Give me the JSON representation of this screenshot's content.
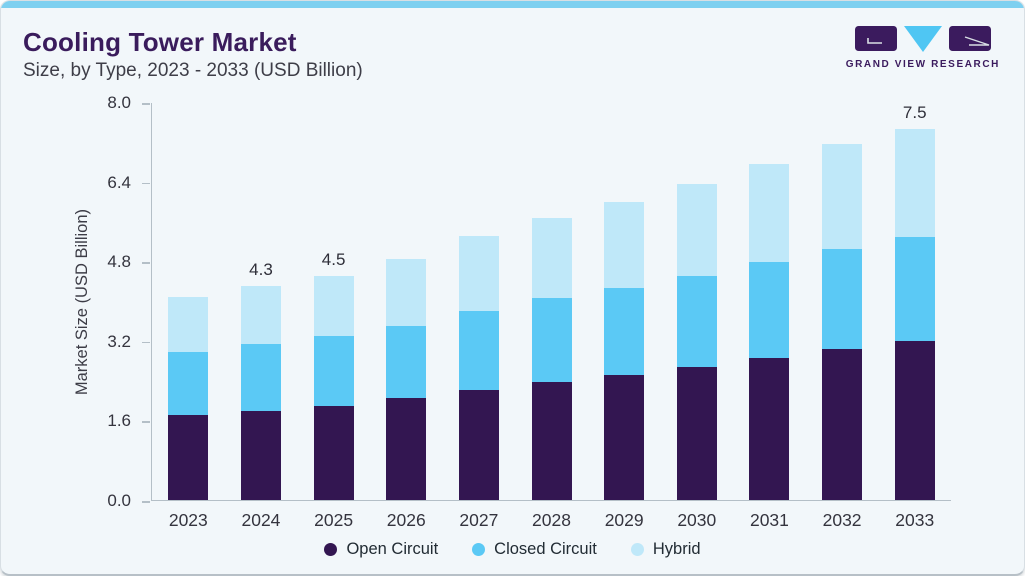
{
  "header": {
    "title": "Cooling Tower Market",
    "subtitle": "Size, by Type, 2023 - 2033 (USD Billion)"
  },
  "brand": {
    "name": "GRAND VIEW RESEARCH",
    "icon": "gvr-logo-icon",
    "purple": "#3b1b5e",
    "blue": "#4fc6f3"
  },
  "colors": {
    "card_background": "#f2f7fa",
    "top_strip": "#7ed0f0",
    "title_text": "#3a1c5c",
    "axis_line": "#b4bfc7"
  },
  "chart_data": {
    "type": "bar",
    "stacked": true,
    "title": "Cooling Tower Market Size, by Type, 2023 - 2033 (USD Billion)",
    "xlabel": "",
    "ylabel": "Market Size (USD Billion)",
    "ylim": [
      0,
      8.0
    ],
    "yticks": [
      "0.0",
      "1.6",
      "3.2",
      "4.8",
      "6.4",
      "8.0"
    ],
    "grid": false,
    "legend_position": "bottom",
    "categories": [
      "2023",
      "2024",
      "2025",
      "2026",
      "2027",
      "2028",
      "2029",
      "2030",
      "2031",
      "2032",
      "2033"
    ],
    "series": [
      {
        "name": "Open Circuit",
        "color": "#331651",
        "values": [
          1.7,
          1.8,
          1.9,
          2.05,
          2.22,
          2.38,
          2.52,
          2.67,
          2.85,
          3.04,
          3.21
        ]
      },
      {
        "name": "Closed Circuit",
        "color": "#5bc9f5",
        "values": [
          1.28,
          1.33,
          1.4,
          1.45,
          1.58,
          1.68,
          1.74,
          1.84,
          1.94,
          2.01,
          2.11
        ]
      },
      {
        "name": "Hybrid",
        "color": "#bfe8f9",
        "values": [
          1.1,
          1.17,
          1.2,
          1.35,
          1.5,
          1.6,
          1.72,
          1.84,
          1.97,
          2.1,
          2.18
        ]
      }
    ],
    "bar_labels": [
      null,
      "4.3",
      "4.5",
      null,
      null,
      null,
      null,
      null,
      null,
      null,
      "7.5"
    ]
  }
}
